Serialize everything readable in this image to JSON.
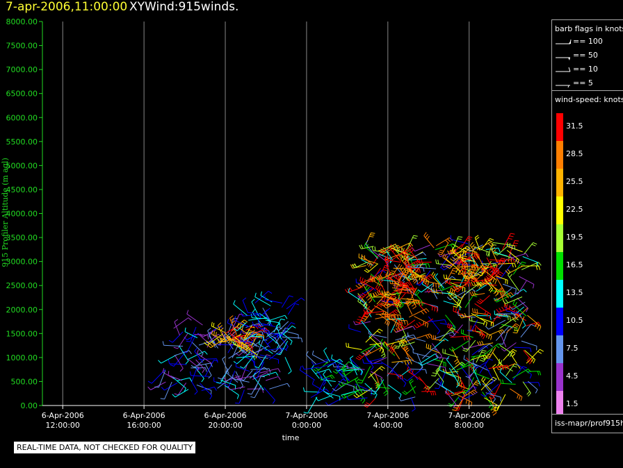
{
  "header": {
    "date_time": "7-apr-2006,11:00:00",
    "product": "XYWind:915winds."
  },
  "legend": {
    "barb_title": "barb flags in knots",
    "barbs": [
      {
        "label": "== 100",
        "icon": "pennant-barb-icon"
      },
      {
        "label": "== 50",
        "icon": "half-pennant-barb-icon"
      },
      {
        "label": "== 10",
        "icon": "full-barb-icon"
      },
      {
        "label": "== 5",
        "icon": "half-barb-icon"
      }
    ],
    "speed_title": "wind-speed: knots",
    "speed_bins": [
      {
        "label": "31.5",
        "color": "#ff0000"
      },
      {
        "label": "28.5",
        "color": "#ff7f00"
      },
      {
        "label": "25.5",
        "color": "#ffb300"
      },
      {
        "label": "22.5",
        "color": "#ffff00"
      },
      {
        "label": "19.5",
        "color": "#a6ff33"
      },
      {
        "label": "16.5",
        "color": "#00e000"
      },
      {
        "label": "13.5",
        "color": "#00ffff"
      },
      {
        "label": "10.5",
        "color": "#0000ff"
      },
      {
        "label": "7.5",
        "color": "#6495ed"
      },
      {
        "label": "4.5",
        "color": "#9932cc"
      },
      {
        "label": "1.5",
        "color": "#ee82ee"
      }
    ]
  },
  "source": "iss-mapr/prof915h",
  "quality_note": "REAL-TIME DATA, NOT CHECKED FOR QUALITY",
  "chart_data": {
    "type": "scatter",
    "xlabel": "time",
    "ylabel": "915 Profiler Altitude (m agl)",
    "ylim": [
      0,
      8000
    ],
    "y_ticks": [
      "0.00",
      "500.00",
      "1000.00",
      "1500.00",
      "2000.00",
      "2500.00",
      "3000.00",
      "3500.00",
      "4000.00",
      "4500.00",
      "5000.00",
      "5500.00",
      "6000.00",
      "6500.00",
      "7000.00",
      "7500.00",
      "8000.00"
    ],
    "x_ticks": [
      {
        "date": "6-Apr-2006",
        "time": "12:00:00"
      },
      {
        "date": "6-Apr-2006",
        "time": "16:00:00"
      },
      {
        "date": "6-Apr-2006",
        "time": "20:00:00"
      },
      {
        "date": "7-Apr-2006",
        "time": "0:00:00"
      },
      {
        "date": "7-Apr-2006",
        "time": "4:00:00"
      },
      {
        "date": "7-Apr-2006",
        "time": "8:00:00"
      }
    ],
    "xlim_hours": [
      11,
      35.5
    ],
    "grid": "vertical lines at each time tick",
    "series": [
      {
        "hours": [
          17.0,
          22.3
        ],
        "alt_range": [
          300,
          1700
        ],
        "speed_range": [
          3,
          13
        ]
      },
      {
        "hours": [
          19.8,
          21.5
        ],
        "alt_range": [
          1100,
          1600
        ],
        "speed_range": [
          22,
          31
        ]
      },
      {
        "hours": [
          21.0,
          23.2
        ],
        "alt_range": [
          1000,
          2200
        ],
        "speed_range": [
          8,
          15
        ]
      },
      {
        "hours": [
          24.2,
          26.5
        ],
        "alt_range": [
          150,
          1000
        ],
        "speed_range": [
          8,
          17
        ]
      },
      {
        "hours": [
          26.5,
          35.0
        ],
        "alt_range": [
          150,
          3400
        ],
        "speed_range": [
          4,
          33
        ]
      },
      {
        "hours": [
          27.3,
          29.5
        ],
        "alt_range": [
          1800,
          3100
        ],
        "speed_range": [
          26,
          33
        ]
      },
      {
        "hours": [
          31.0,
          33.5
        ],
        "alt_range": [
          2500,
          3300
        ],
        "speed_range": [
          22,
          33
        ]
      }
    ]
  }
}
